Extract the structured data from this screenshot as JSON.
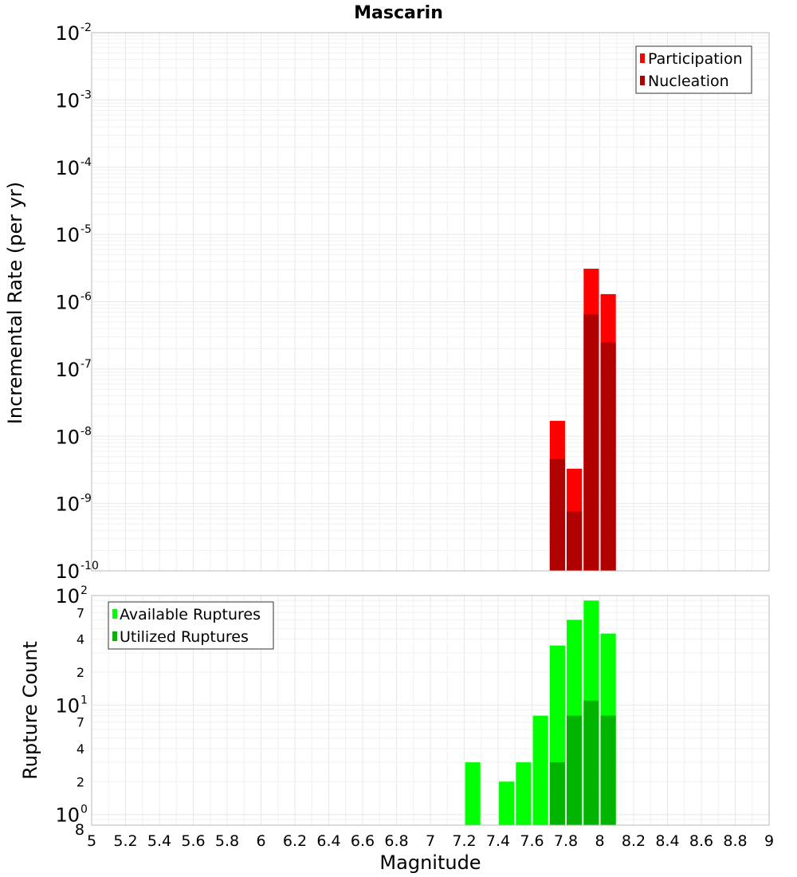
{
  "chart_data": {
    "title": "Mascarin",
    "xlabel": "Magnitude",
    "xlim": [
      5,
      9
    ],
    "x_ticks": [
      "5",
      "5.2",
      "5.4",
      "5.6",
      "5.8",
      "6",
      "6.2",
      "6.4",
      "6.6",
      "6.8",
      "7",
      "7.2",
      "7.4",
      "7.6",
      "7.8",
      "8",
      "8.2",
      "8.4",
      "8.6",
      "8.8",
      "9"
    ],
    "panels": [
      {
        "type": "bar",
        "ylabel": "Incremental Rate (per yr)",
        "yscale": "log",
        "ylim": [
          1e-10,
          0.01
        ],
        "y_tick_bases": [
          "10",
          "10",
          "10",
          "10",
          "10",
          "10",
          "10",
          "10",
          "10"
        ],
        "y_tick_exponents": [
          "-10",
          "-9",
          "-8",
          "-7",
          "-6",
          "-5",
          "-4",
          "-3",
          "-2"
        ],
        "legend_position": "top-right",
        "series": [
          {
            "name": "Participation",
            "color": "#ff0000",
            "x": [
              7.75,
              7.85,
              7.95,
              8.05
            ],
            "values": [
              1.7e-08,
              3.3e-09,
              3.1e-06,
              1.3e-06
            ]
          },
          {
            "name": "Nucleation",
            "color": "#b00000",
            "x": [
              7.75,
              7.85,
              7.95,
              8.05
            ],
            "values": [
              4.6e-09,
              7.6e-10,
              6.5e-07,
              2.5e-07
            ]
          }
        ]
      },
      {
        "type": "bar",
        "ylabel": "Rupture Count",
        "yscale": "log",
        "ylim": [
          0.8,
          100
        ],
        "y_major_ticks": [
          {
            "base": "10",
            "exp": "0"
          },
          {
            "base": "10",
            "exp": "1"
          },
          {
            "base": "10",
            "exp": "2"
          }
        ],
        "y_minor_ticks": [
          "8",
          "2",
          "4",
          "7",
          "2",
          "4",
          "7"
        ],
        "legend_position": "top-left",
        "series": [
          {
            "name": "Available Ruptures",
            "color": "#00ff00",
            "x": [
              7.25,
              7.45,
              7.55,
              7.65,
              7.75,
              7.85,
              7.95,
              8.05
            ],
            "values": [
              3,
              2,
              3,
              8,
              35,
              60,
              90,
              45
            ]
          },
          {
            "name": "Utilized Ruptures",
            "color": "#00b400",
            "x": [
              7.75,
              7.85,
              7.95,
              8.05
            ],
            "values": [
              3,
              8,
              11,
              8
            ]
          }
        ]
      }
    ]
  }
}
